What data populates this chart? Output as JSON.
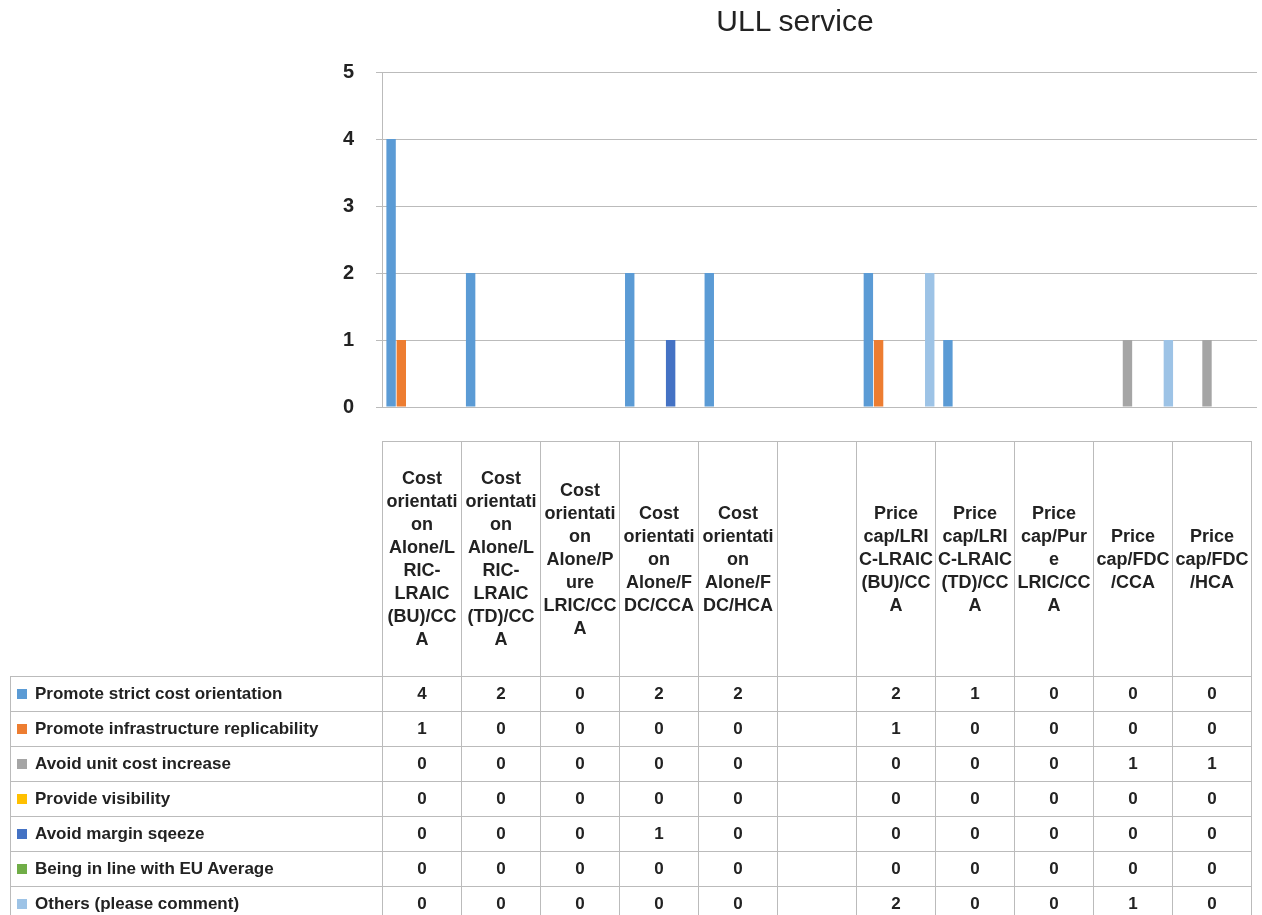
{
  "chart_data": {
    "type": "bar",
    "title": "ULL service",
    "categories": [
      "Cost orientation Alone/LRIC-LRAIC (BU)/CCA",
      "Cost orientation Alone/LRIC-LRAIC (TD)/CCA",
      "Cost orientation Alone/Pure LRIC/CCA",
      "Cost orientation Alone/FDC/CCA",
      "Cost orientation Alone/FDC/HCA",
      null,
      "Price cap/LRIC-LRAIC (BU)/CCA",
      "Price cap/LRIC-LRAIC (TD)/CCA",
      "Price cap/Pure LRIC/CCA",
      "Price cap/FDC/CCA",
      "Price cap/FDC/HCA"
    ],
    "series": [
      {
        "name": "Promote strict cost orientation",
        "color": "#5b9bd5",
        "values": [
          4,
          2,
          0,
          2,
          2,
          null,
          2,
          1,
          0,
          0,
          0
        ]
      },
      {
        "name": "Promote infrastructure replicability",
        "color": "#ed7d31",
        "values": [
          1,
          0,
          0,
          0,
          0,
          null,
          1,
          0,
          0,
          0,
          0
        ]
      },
      {
        "name": "Avoid unit cost increase",
        "color": "#a5a5a5",
        "values": [
          0,
          0,
          0,
          0,
          0,
          null,
          0,
          0,
          0,
          1,
          1
        ]
      },
      {
        "name": "Provide visibility",
        "color": "#ffc000",
        "values": [
          0,
          0,
          0,
          0,
          0,
          null,
          0,
          0,
          0,
          0,
          0
        ]
      },
      {
        "name": "Avoid margin sqeeze",
        "color": "#4472c4",
        "values": [
          0,
          0,
          0,
          1,
          0,
          null,
          0,
          0,
          0,
          0,
          0
        ]
      },
      {
        "name": "Being in line with EU Average",
        "color": "#70ad47",
        "values": [
          0,
          0,
          0,
          0,
          0,
          null,
          0,
          0,
          0,
          0,
          0
        ]
      },
      {
        "name": "Others (please comment)",
        "color": "#9dc3e6",
        "values": [
          0,
          0,
          0,
          0,
          0,
          null,
          2,
          0,
          0,
          1,
          0
        ]
      }
    ],
    "ylim": [
      0,
      5
    ],
    "yticks": [
      0,
      1,
      2,
      3,
      4,
      5
    ],
    "grid": "y",
    "legend": "bottom",
    "data_labels": true
  }
}
